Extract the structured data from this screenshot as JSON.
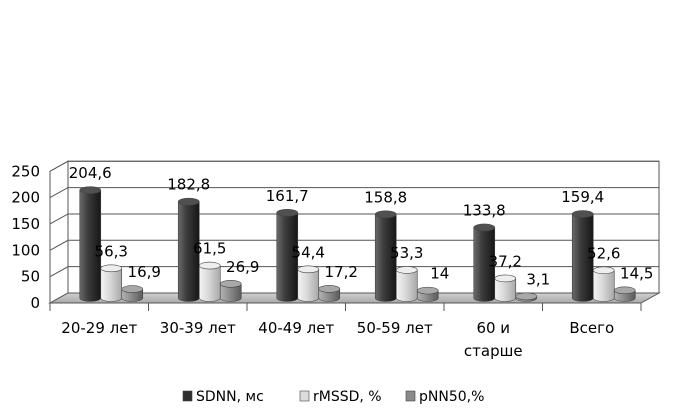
{
  "chart_data": {
    "type": "bar",
    "title": "",
    "xlabel": "",
    "ylabel": "",
    "ylim": [
      0,
      250
    ],
    "yticks": [
      "0",
      "50",
      "100",
      "150",
      "200",
      "250"
    ],
    "grid": true,
    "legend_position": "bottom",
    "categories": [
      [
        "20-29 лет"
      ],
      [
        "30-39 лет"
      ],
      [
        "40-49 лет"
      ],
      [
        "50-59 лет"
      ],
      [
        "60 и",
        "старше"
      ],
      [
        "Всего"
      ]
    ],
    "series": [
      {
        "name": "SDNN, мс",
        "color": "#3a3a3a",
        "values": [
          204.6,
          182.8,
          161.7,
          158.8,
          133.8,
          159.4
        ],
        "labels": [
          "204,6",
          "182,8",
          "161,7",
          "158,8",
          "133,8",
          "159,4"
        ]
      },
      {
        "name": "rMSSD, %",
        "color": "#d4d4d4",
        "values": [
          56.3,
          61.5,
          54.4,
          53.3,
          37.2,
          52.6
        ],
        "labels": [
          "56,3",
          "61,5",
          "54,4",
          "53,3",
          "37,2",
          "52,6"
        ]
      },
      {
        "name": "pNN50,%",
        "color": "#8c8c8c",
        "values": [
          16.9,
          26.9,
          17.2,
          14,
          3.1,
          14.5
        ],
        "labels": [
          "16,9",
          "26,9",
          "17,2",
          "14",
          "3,1",
          "14,5"
        ]
      }
    ]
  }
}
